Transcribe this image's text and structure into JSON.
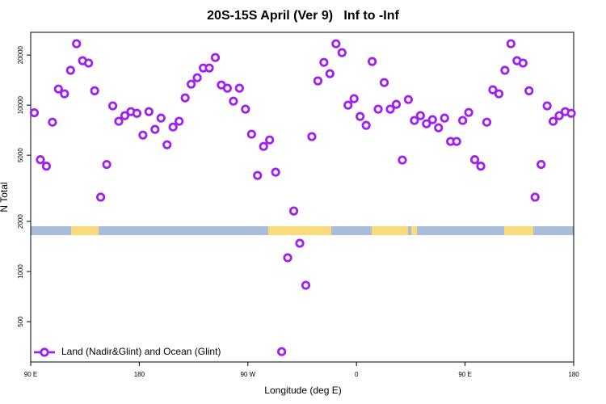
{
  "chart_data": {
    "type": "scatter",
    "title": "20S-15S April (Ver 9)   Inf to -Inf",
    "x_label": "Longitude (deg E)",
    "y_label": "N Total",
    "x": [
      93,
      98,
      103,
      108,
      113,
      118,
      123,
      128,
      133,
      138,
      143,
      148,
      153,
      158,
      163,
      168,
      173,
      178,
      183,
      188,
      193,
      198,
      203,
      208,
      213,
      218,
      223,
      228,
      233,
      238,
      243,
      248,
      253,
      258,
      263,
      268,
      273,
      278,
      283,
      288,
      293,
      298,
      303,
      308,
      313,
      318,
      323,
      328,
      333,
      338,
      343,
      348,
      353,
      358,
      363,
      368,
      373,
      378,
      383,
      388,
      393,
      398,
      403,
      408,
      413,
      418,
      423,
      428,
      433,
      438,
      443,
      448,
      453,
      458,
      463,
      468,
      473,
      478,
      483,
      488,
      493,
      498,
      503,
      508,
      513,
      518,
      523,
      528,
      533,
      538
    ],
    "series": [
      {
        "name": "Land (Nadir&Glint) and Ocean (Glint)",
        "color": "#a020f0",
        "values": [
          9000,
          4700,
          4300,
          7900,
          12500,
          11700,
          16200,
          23400,
          18500,
          17900,
          12200,
          2800,
          4400,
          9900,
          8000,
          8650,
          9140,
          8930,
          6610,
          9140,
          7150,
          8360,
          5780,
          7390,
          8000,
          11060,
          13370,
          14620,
          16720,
          16720,
          19330,
          13220,
          12650,
          10570,
          12650,
          9460,
          6690,
          3780,
          5650,
          6180,
          3955,
          330,
          1210,
          2312,
          1479,
          827,
          6470,
          13990,
          18080,
          15460,
          23380,
          20690,
          10000,
          10940,
          8550,
          7560,
          18290,
          9460,
          13670,
          9460,
          10110,
          4677,
          10810,
          8090,
          8650,
          7730,
          8180,
          7310,
          8360,
          6050,
          6050,
          8090,
          9040,
          4700,
          4300,
          7900,
          12370,
          11700,
          16200,
          23400,
          18500,
          17900,
          12200,
          2800,
          4400,
          9900,
          8000,
          8650,
          9140,
          8930
        ]
      }
    ],
    "xlim": [
      90,
      540
    ],
    "xticks": [
      {
        "value": 90,
        "label": "90 E"
      },
      180,
      {
        "value": 270,
        "label": "90 W"
      },
      {
        "value": 360,
        "label": "0"
      },
      {
        "value": 450,
        "label": "90 E"
      },
      {
        "value": 540,
        "label": "180"
      }
    ],
    "ylim": [
      286,
      27400
    ],
    "yticks": [
      500,
      1000,
      2000,
      5000,
      10000,
      20000
    ],
    "log_y": true,
    "legend": "lower left"
  }
}
